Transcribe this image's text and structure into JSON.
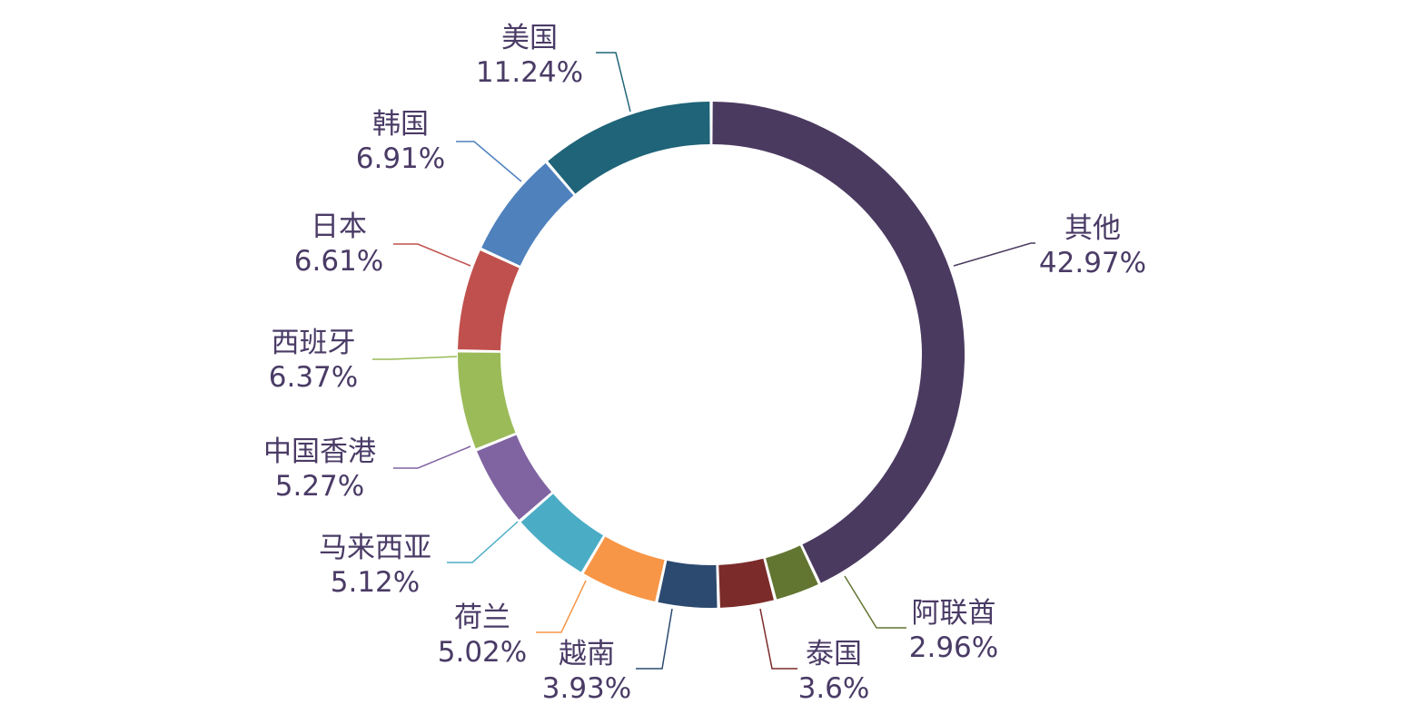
{
  "chart_data": {
    "type": "pie",
    "subtype": "donut",
    "title": "",
    "legend": "none",
    "slices": [
      {
        "label": "其他",
        "value": 42.97,
        "display": "42.97%",
        "color": "#4b3a60"
      },
      {
        "label": "阿联酋",
        "value": 2.96,
        "display": "2.96%",
        "color": "#627531"
      },
      {
        "label": "泰国",
        "value": 3.6,
        "display": "3.6%",
        "color": "#7b2b2a"
      },
      {
        "label": "越南",
        "value": 3.93,
        "display": "3.93%",
        "color": "#2c4a70"
      },
      {
        "label": "荷兰",
        "value": 5.02,
        "display": "5.02%",
        "color": "#f79646"
      },
      {
        "label": "马来西亚",
        "value": 5.12,
        "display": "5.12%",
        "color": "#4bacc6"
      },
      {
        "label": "中国香港",
        "value": 5.27,
        "display": "5.27%",
        "color": "#8064a2"
      },
      {
        "label": "西班牙",
        "value": 6.37,
        "display": "6.37%",
        "color": "#9bbb59"
      },
      {
        "label": "日本",
        "value": 6.61,
        "display": "6.61%",
        "color": "#c0504d"
      },
      {
        "label": "韩国",
        "value": 6.91,
        "display": "6.91%",
        "color": "#4f81bd"
      },
      {
        "label": "美国",
        "value": 11.24,
        "display": "11.24%",
        "color": "#1f6478"
      }
    ]
  }
}
